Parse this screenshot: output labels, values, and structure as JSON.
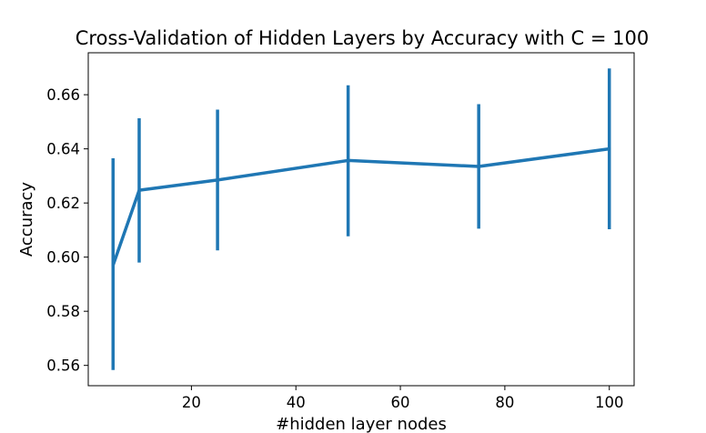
{
  "chart_data": {
    "type": "line",
    "title": "Cross-Validation of Hidden Layers by Accuracy with C = 100",
    "xlabel": "#hidden layer nodes",
    "ylabel": "Accuracy",
    "xlim": [
      0.25,
      104.75
    ],
    "ylim": [
      0.5525,
      0.6755
    ],
    "x_ticks": [
      20,
      40,
      60,
      80,
      100
    ],
    "y_ticks": [
      0.56,
      0.58,
      0.6,
      0.62,
      0.64,
      0.66
    ],
    "x_tick_labels": [
      "20",
      "40",
      "60",
      "80",
      "100"
    ],
    "y_tick_labels": [
      "0.56",
      "0.58",
      "0.60",
      "0.62",
      "0.64",
      "0.66"
    ],
    "grid": false,
    "series": [
      {
        "x": [
          5,
          10,
          25,
          50,
          75,
          100
        ],
        "y": [
          0.597,
          0.6247,
          0.6285,
          0.6357,
          0.6335,
          0.64
        ],
        "err_low": [
          0.5583,
          0.598,
          0.6025,
          0.6077,
          0.6105,
          0.6103
        ],
        "err_high": [
          0.6365,
          0.6513,
          0.6545,
          0.6635,
          0.6565,
          0.6697
        ],
        "color": "#1f77b4"
      }
    ]
  }
}
